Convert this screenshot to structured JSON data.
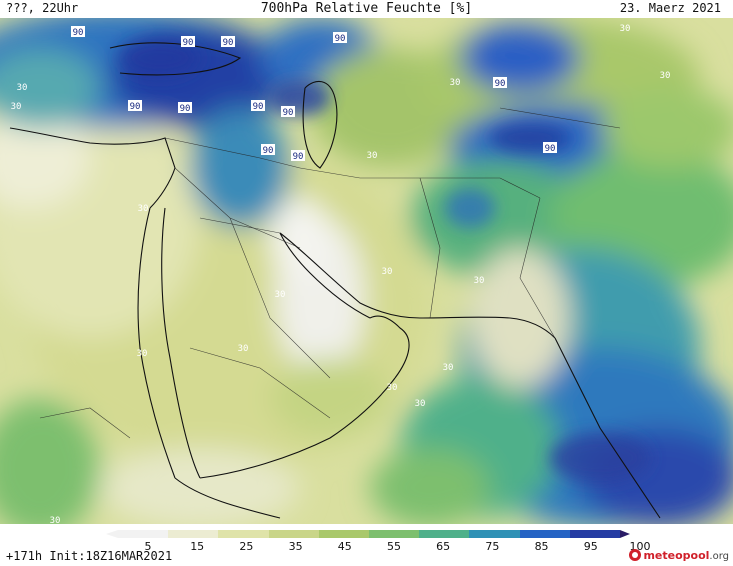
{
  "header": {
    "left": "???, 22Uhr",
    "center": "700hPa Relative Feuchte [%]",
    "right": "23. Maerz 2021"
  },
  "footer": {
    "left": "+171h Init:18Z16MAR2021"
  },
  "logo": {
    "name": "meteopool",
    "tld": ".org"
  },
  "colorbar": {
    "ticks": [
      "5",
      "15",
      "25",
      "35",
      "45",
      "55",
      "65",
      "75",
      "85",
      "95",
      "100"
    ],
    "colors": [
      "#f2f2f2",
      "#ececd2",
      "#dfe3a9",
      "#c9d589",
      "#a9c86b",
      "#7dbf6e",
      "#4fb08a",
      "#2f91b5",
      "#2563c4",
      "#253ca3",
      "#2a1c66"
    ]
  },
  "contour_labels": [
    {
      "text": "90"
    },
    {
      "text": "90"
    },
    {
      "text": "90"
    },
    {
      "text": "90"
    },
    {
      "text": "90"
    },
    {
      "text": "90"
    },
    {
      "text": "90"
    },
    {
      "text": "90"
    },
    {
      "text": "90"
    },
    {
      "text": "90"
    },
    {
      "text": "90"
    },
    {
      "text": "90"
    },
    {
      "text": "30"
    },
    {
      "text": "30"
    },
    {
      "text": "30"
    },
    {
      "text": "30"
    },
    {
      "text": "30"
    },
    {
      "text": "30"
    },
    {
      "text": "30"
    },
    {
      "text": "30"
    },
    {
      "text": "30"
    },
    {
      "text": "30"
    },
    {
      "text": "30"
    },
    {
      "text": "30"
    },
    {
      "text": "30"
    },
    {
      "text": "30"
    },
    {
      "text": "30"
    },
    {
      "text": "30"
    }
  ]
}
